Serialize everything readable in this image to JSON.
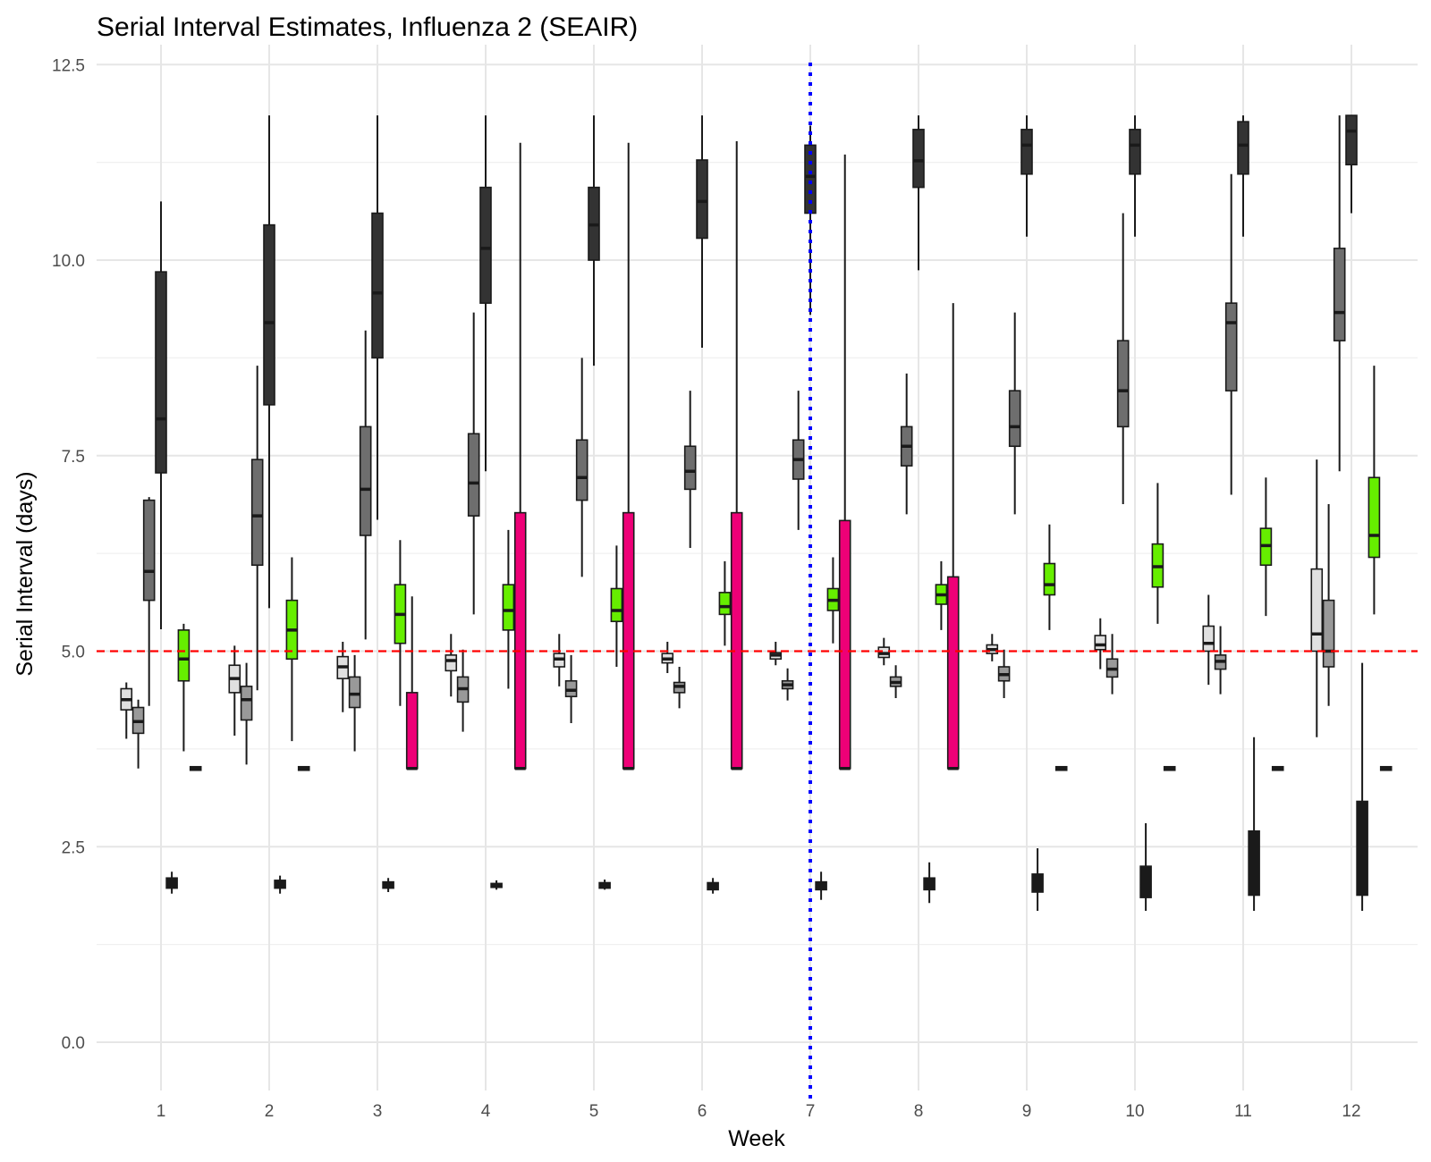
{
  "chart_data": {
    "type": "boxplot",
    "title": "Serial Interval Estimates, Influenza 2 (SEAIR)",
    "xlabel": "Week",
    "ylabel": "Serial Interval (days)",
    "categories": [
      "1",
      "2",
      "3",
      "4",
      "5",
      "6",
      "7",
      "8",
      "9",
      "10",
      "11",
      "12"
    ],
    "ylim": [
      -0.6,
      12.5
    ],
    "yticks": [
      "0.0",
      "2.5",
      "5.0",
      "7.5",
      "10.0",
      "12.5"
    ],
    "grid": true,
    "reference_lines": [
      {
        "axis": "y",
        "value": 5.0,
        "color": "#ff0000",
        "style": "dashed"
      },
      {
        "axis": "x",
        "value": 7,
        "color": "#0000ff",
        "style": "dotted"
      }
    ],
    "series": [
      {
        "fill": "#e0e0e0",
        "offset": -0.32,
        "boxes": [
          {
            "week": 1,
            "low": 3.88,
            "q1": 4.25,
            "median": 4.38,
            "q3": 4.52,
            "high": 4.6
          },
          {
            "week": 2,
            "low": 3.92,
            "q1": 4.47,
            "median": 4.65,
            "q3": 4.82,
            "high": 5.07
          },
          {
            "week": 3,
            "low": 4.22,
            "q1": 4.65,
            "median": 4.8,
            "q3": 4.93,
            "high": 5.12
          },
          {
            "week": 4,
            "low": 4.42,
            "q1": 4.75,
            "median": 4.88,
            "q3": 4.95,
            "high": 5.22
          },
          {
            "week": 5,
            "low": 4.55,
            "q1": 4.8,
            "median": 4.9,
            "q3": 4.97,
            "high": 5.22
          },
          {
            "week": 6,
            "low": 4.72,
            "q1": 4.85,
            "median": 4.9,
            "q3": 4.97,
            "high": 5.12
          },
          {
            "week": 7,
            "low": 4.82,
            "q1": 4.9,
            "median": 4.95,
            "q3": 4.98,
            "high": 5.12
          },
          {
            "week": 8,
            "low": 4.82,
            "q1": 4.92,
            "median": 4.97,
            "q3": 5.05,
            "high": 5.17
          },
          {
            "week": 9,
            "low": 4.87,
            "q1": 4.97,
            "median": 5.02,
            "q3": 5.08,
            "high": 5.22
          },
          {
            "week": 10,
            "low": 4.77,
            "q1": 5.02,
            "median": 5.08,
            "q3": 5.2,
            "high": 5.42
          },
          {
            "week": 11,
            "low": 4.57,
            "q1": 5.0,
            "median": 5.1,
            "q3": 5.32,
            "high": 5.72
          },
          {
            "week": 12,
            "low": 3.9,
            "q1": 5.0,
            "median": 5.22,
            "q3": 6.05,
            "high": 7.45
          }
        ]
      },
      {
        "fill": "#999999",
        "offset": -0.21,
        "boxes": [
          {
            "week": 1,
            "low": 3.5,
            "q1": 3.95,
            "median": 4.1,
            "q3": 4.28,
            "high": 4.38
          },
          {
            "week": 2,
            "low": 3.55,
            "q1": 4.12,
            "median": 4.38,
            "q3": 4.55,
            "high": 4.85
          },
          {
            "week": 3,
            "low": 3.72,
            "q1": 4.28,
            "median": 4.45,
            "q3": 4.67,
            "high": 4.95
          },
          {
            "week": 4,
            "low": 3.97,
            "q1": 4.35,
            "median": 4.52,
            "q3": 4.67,
            "high": 5.02
          },
          {
            "week": 5,
            "low": 4.08,
            "q1": 4.42,
            "median": 4.5,
            "q3": 4.62,
            "high": 4.95
          },
          {
            "week": 6,
            "low": 4.27,
            "q1": 4.47,
            "median": 4.55,
            "q3": 4.6,
            "high": 4.8
          },
          {
            "week": 7,
            "low": 4.37,
            "q1": 4.52,
            "median": 4.57,
            "q3": 4.62,
            "high": 4.78
          },
          {
            "week": 8,
            "low": 4.4,
            "q1": 4.55,
            "median": 4.6,
            "q3": 4.67,
            "high": 4.82
          },
          {
            "week": 9,
            "low": 4.4,
            "q1": 4.62,
            "median": 4.7,
            "q3": 4.8,
            "high": 5.02
          },
          {
            "week": 10,
            "low": 4.45,
            "q1": 4.67,
            "median": 4.77,
            "q3": 4.9,
            "high": 5.22
          },
          {
            "week": 11,
            "low": 4.45,
            "q1": 4.77,
            "median": 4.87,
            "q3": 4.95,
            "high": 5.32
          },
          {
            "week": 12,
            "low": 4.3,
            "q1": 4.8,
            "median": 5.0,
            "q3": 5.65,
            "high": 6.88
          }
        ]
      },
      {
        "fill": "#6e6e6e",
        "offset": -0.11,
        "boxes": [
          {
            "week": 1,
            "low": 4.3,
            "q1": 5.65,
            "median": 6.02,
            "q3": 6.93,
            "high": 6.97
          },
          {
            "week": 2,
            "low": 4.5,
            "q1": 6.1,
            "median": 6.73,
            "q3": 7.45,
            "high": 8.65
          },
          {
            "week": 3,
            "low": 5.15,
            "q1": 6.48,
            "median": 7.07,
            "q3": 7.87,
            "high": 9.1
          },
          {
            "week": 4,
            "low": 5.47,
            "q1": 6.73,
            "median": 7.15,
            "q3": 7.78,
            "high": 9.33
          },
          {
            "week": 5,
            "low": 5.95,
            "q1": 6.93,
            "median": 7.22,
            "q3": 7.7,
            "high": 8.75
          },
          {
            "week": 6,
            "low": 6.32,
            "q1": 7.07,
            "median": 7.3,
            "q3": 7.62,
            "high": 8.33
          },
          {
            "week": 7,
            "low": 6.55,
            "q1": 7.2,
            "median": 7.45,
            "q3": 7.7,
            "high": 8.33
          },
          {
            "week": 8,
            "low": 6.75,
            "q1": 7.37,
            "median": 7.62,
            "q3": 7.87,
            "high": 8.55
          },
          {
            "week": 9,
            "low": 6.75,
            "q1": 7.62,
            "median": 7.87,
            "q3": 8.33,
            "high": 9.33
          },
          {
            "week": 10,
            "low": 6.88,
            "q1": 7.87,
            "median": 8.33,
            "q3": 8.97,
            "high": 10.6
          },
          {
            "week": 11,
            "low": 7.0,
            "q1": 8.33,
            "median": 9.2,
            "q3": 9.45,
            "high": 11.1
          },
          {
            "week": 12,
            "low": 7.3,
            "q1": 8.97,
            "median": 9.33,
            "q3": 10.15,
            "high": 11.85
          }
        ]
      },
      {
        "fill": "#333333",
        "offset": 0.0,
        "boxes": [
          {
            "week": 1,
            "low": 5.28,
            "q1": 7.28,
            "median": 7.97,
            "q3": 9.85,
            "high": 10.75
          },
          {
            "week": 2,
            "low": 5.55,
            "q1": 8.15,
            "median": 9.2,
            "q3": 10.45,
            "high": 11.85
          },
          {
            "week": 3,
            "low": 6.68,
            "q1": 8.75,
            "median": 9.58,
            "q3": 10.6,
            "high": 11.85
          },
          {
            "week": 4,
            "low": 7.3,
            "q1": 9.45,
            "median": 10.15,
            "q3": 10.93,
            "high": 11.85
          },
          {
            "week": 5,
            "low": 8.65,
            "q1": 10.0,
            "median": 10.45,
            "q3": 10.93,
            "high": 11.85
          },
          {
            "week": 6,
            "low": 8.88,
            "q1": 10.28,
            "median": 10.75,
            "q3": 11.28,
            "high": 11.85
          },
          {
            "week": 7,
            "low": 9.3,
            "q1": 10.6,
            "median": 11.07,
            "q3": 11.47,
            "high": 11.72
          },
          {
            "week": 8,
            "low": 9.87,
            "q1": 10.93,
            "median": 11.27,
            "q3": 11.67,
            "high": 11.85
          },
          {
            "week": 9,
            "low": 10.3,
            "q1": 11.1,
            "median": 11.47,
            "q3": 11.67,
            "high": 11.85
          },
          {
            "week": 10,
            "low": 10.3,
            "q1": 11.1,
            "median": 11.47,
            "q3": 11.67,
            "high": 11.85
          },
          {
            "week": 11,
            "low": 10.3,
            "q1": 11.1,
            "median": 11.47,
            "q3": 11.77,
            "high": 11.85
          },
          {
            "week": 12,
            "low": 10.6,
            "q1": 11.22,
            "median": 11.65,
            "q3": 11.85,
            "high": 11.85
          }
        ]
      },
      {
        "fill": "#1a1a1a",
        "offset": 0.1,
        "boxes": [
          {
            "week": 1,
            "low": 1.9,
            "q1": 1.97,
            "median": 2.02,
            "q3": 2.1,
            "high": 2.18
          },
          {
            "week": 2,
            "low": 1.9,
            "q1": 1.97,
            "median": 2.02,
            "q3": 2.07,
            "high": 2.13
          },
          {
            "week": 3,
            "low": 1.92,
            "q1": 1.97,
            "median": 2.0,
            "q3": 2.05,
            "high": 2.1
          },
          {
            "week": 4,
            "low": 1.95,
            "q1": 1.98,
            "median": 2.0,
            "q3": 2.03,
            "high": 2.07
          },
          {
            "week": 5,
            "low": 1.95,
            "q1": 1.97,
            "median": 2.0,
            "q3": 2.04,
            "high": 2.08
          },
          {
            "week": 6,
            "low": 1.9,
            "q1": 1.95,
            "median": 2.0,
            "q3": 2.04,
            "high": 2.1
          },
          {
            "week": 7,
            "low": 1.82,
            "q1": 1.95,
            "median": 2.0,
            "q3": 2.05,
            "high": 2.18
          },
          {
            "week": 8,
            "low": 1.78,
            "q1": 1.95,
            "median": 2.02,
            "q3": 2.1,
            "high": 2.3
          },
          {
            "week": 9,
            "low": 1.68,
            "q1": 1.92,
            "median": 2.0,
            "q3": 2.15,
            "high": 2.48
          },
          {
            "week": 10,
            "low": 1.68,
            "q1": 1.85,
            "median": 2.0,
            "q3": 2.25,
            "high": 2.8
          },
          {
            "week": 11,
            "low": 1.68,
            "q1": 1.88,
            "median": 2.12,
            "q3": 2.7,
            "high": 3.9
          },
          {
            "week": 12,
            "low": 1.68,
            "q1": 1.88,
            "median": 2.25,
            "q3": 3.08,
            "high": 4.85
          }
        ]
      },
      {
        "fill": "#66ee00",
        "offset": 0.21,
        "boxes": [
          {
            "week": 1,
            "low": 3.72,
            "q1": 4.62,
            "median": 4.9,
            "q3": 5.27,
            "high": 5.35
          },
          {
            "week": 2,
            "low": 3.85,
            "q1": 4.9,
            "median": 5.27,
            "q3": 5.65,
            "high": 6.2
          },
          {
            "week": 3,
            "low": 4.3,
            "q1": 5.1,
            "median": 5.47,
            "q3": 5.85,
            "high": 6.42
          },
          {
            "week": 4,
            "low": 4.52,
            "q1": 5.27,
            "median": 5.52,
            "q3": 5.85,
            "high": 6.55
          },
          {
            "week": 5,
            "low": 4.8,
            "q1": 5.38,
            "median": 5.52,
            "q3": 5.8,
            "high": 6.35
          },
          {
            "week": 6,
            "low": 5.07,
            "q1": 5.47,
            "median": 5.57,
            "q3": 5.75,
            "high": 6.15
          },
          {
            "week": 7,
            "low": 5.1,
            "q1": 5.52,
            "median": 5.65,
            "q3": 5.8,
            "high": 6.2
          },
          {
            "week": 8,
            "low": 5.27,
            "q1": 5.6,
            "median": 5.72,
            "q3": 5.85,
            "high": 6.15
          },
          {
            "week": 9,
            "low": 5.27,
            "q1": 5.72,
            "median": 5.85,
            "q3": 6.12,
            "high": 6.62
          },
          {
            "week": 10,
            "low": 5.35,
            "q1": 5.82,
            "median": 6.08,
            "q3": 6.37,
            "high": 7.15
          },
          {
            "week": 11,
            "low": 5.45,
            "q1": 6.1,
            "median": 6.35,
            "q3": 6.57,
            "high": 7.22
          },
          {
            "week": 12,
            "low": 5.47,
            "q1": 6.2,
            "median": 6.48,
            "q3": 7.22,
            "high": 8.65
          }
        ]
      },
      {
        "fill": "#ee0077",
        "offset": 0.32,
        "boxes": [
          {
            "week": 1,
            "low": 3.5,
            "q1": 3.5,
            "median": 3.5,
            "q3": 3.5,
            "high": 3.5
          },
          {
            "week": 2,
            "low": 3.5,
            "q1": 3.5,
            "median": 3.5,
            "q3": 3.5,
            "high": 3.5
          },
          {
            "week": 3,
            "low": 3.5,
            "q1": 3.5,
            "median": 3.5,
            "q3": 4.47,
            "high": 5.7
          },
          {
            "week": 4,
            "low": 3.5,
            "q1": 3.5,
            "median": 3.5,
            "q3": 6.77,
            "high": 11.5
          },
          {
            "week": 5,
            "low": 3.5,
            "q1": 3.5,
            "median": 3.5,
            "q3": 6.77,
            "high": 11.5
          },
          {
            "week": 6,
            "low": 3.5,
            "q1": 3.5,
            "median": 3.5,
            "q3": 6.77,
            "high": 11.52
          },
          {
            "week": 7,
            "low": 3.5,
            "q1": 3.5,
            "median": 3.5,
            "q3": 6.67,
            "high": 11.35
          },
          {
            "week": 8,
            "low": 3.5,
            "q1": 3.5,
            "median": 3.5,
            "q3": 5.95,
            "high": 9.45
          },
          {
            "week": 9,
            "low": 3.5,
            "q1": 3.5,
            "median": 3.5,
            "q3": 3.5,
            "high": 3.5
          },
          {
            "week": 10,
            "low": 3.5,
            "q1": 3.5,
            "median": 3.5,
            "q3": 3.5,
            "high": 3.5
          },
          {
            "week": 11,
            "low": 3.5,
            "q1": 3.5,
            "median": 3.5,
            "q3": 3.5,
            "high": 3.5
          },
          {
            "week": 12,
            "low": 3.5,
            "q1": 3.5,
            "median": 3.5,
            "q3": 3.5,
            "high": 3.5
          }
        ]
      }
    ]
  }
}
